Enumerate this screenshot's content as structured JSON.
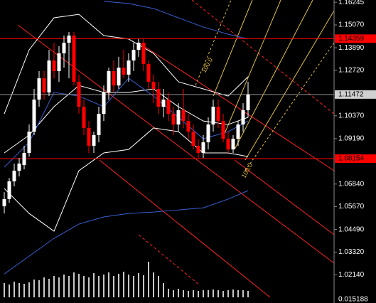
{
  "chart_data": {
    "type": "candlestick",
    "up_color": "#ffffff",
    "down_color": "#ff0000",
    "open": [
      1.0569,
      1.0606,
      1.0698,
      1.0753,
      1.0782,
      1.0845,
      1.0955,
      1.1121,
      1.1231,
      1.1158,
      1.1323,
      1.1268,
      1.136,
      1.1415,
      1.1452,
      1.1213,
      1.1084,
      1.0974,
      1.0882,
      1.0937,
      1.1047,
      1.1158,
      1.1268,
      1.1194,
      1.1286,
      1.125,
      1.1323,
      1.1378,
      1.1415,
      1.1305,
      1.1213,
      1.1176,
      1.1084,
      1.1121,
      1.1047,
      1.0992,
      1.1066,
      1.101,
      1.0955,
      1.0882,
      1.0845,
      1.09,
      1.0992,
      1.1084,
      1.101,
      1.0918,
      1.0863,
      1.0918,
      1.0992,
      1.1066
    ],
    "high": [
      1.0642,
      1.0716,
      1.079,
      1.0819,
      1.0882,
      1.0992,
      1.1176,
      1.1268,
      1.1268,
      1.1378,
      1.1415,
      1.1397,
      1.1452,
      1.147,
      1.147,
      1.125,
      1.1121,
      1.101,
      1.0955,
      1.1084,
      1.1194,
      1.1286,
      1.1323,
      1.1342,
      1.1378,
      1.136,
      1.1415,
      1.1434,
      1.1434,
      1.1323,
      1.125,
      1.1213,
      1.1176,
      1.1158,
      1.1084,
      1.1102,
      1.1176,
      1.1047,
      1.0992,
      1.0918,
      1.0937,
      1.1029,
      1.1121,
      1.1121,
      1.1047,
      1.0955,
      1.0937,
      1.101,
      1.1102,
      1.1213
    ],
    "low": [
      1.0532,
      1.0587,
      1.0672,
      1.0723,
      1.076,
      1.0826,
      1.0937,
      1.1084,
      1.1121,
      1.1139,
      1.1231,
      1.1213,
      1.1286,
      1.1231,
      1.1194,
      1.1047,
      1.0937,
      1.0845,
      1.0845,
      1.09,
      1.101,
      1.1121,
      1.1158,
      1.1176,
      1.1231,
      1.1213,
      1.1268,
      1.1342,
      1.1268,
      1.1176,
      1.1102,
      1.1047,
      1.1029,
      1.101,
      1.0937,
      1.0955,
      1.0974,
      1.0918,
      1.0863,
      1.0819,
      1.0819,
      1.0863,
      1.0955,
      1.0974,
      1.09,
      1.0845,
      1.0845,
      1.0882,
      1.0955,
      1.1029
    ],
    "close": [
      1.0606,
      1.0698,
      1.0753,
      1.079,
      1.0845,
      1.0955,
      1.1121,
      1.1231,
      1.1158,
      1.1323,
      1.1268,
      1.136,
      1.1415,
      1.1452,
      1.1213,
      1.1084,
      1.0974,
      1.0882,
      1.0937,
      1.1047,
      1.1158,
      1.1268,
      1.1194,
      1.1286,
      1.125,
      1.1323,
      1.1378,
      1.1415,
      1.1305,
      1.1213,
      1.1176,
      1.1084,
      1.1121,
      1.1047,
      1.0992,
      1.1066,
      1.101,
      1.0955,
      1.0882,
      1.0845,
      1.09,
      1.0992,
      1.1084,
      1.101,
      1.0918,
      1.0863,
      1.0918,
      1.0992,
      1.1066,
      1.1147
    ],
    "volumes": [
      20,
      18,
      22,
      20,
      19,
      21,
      25,
      24,
      28,
      26,
      30,
      28,
      32,
      30,
      35,
      33,
      30,
      28,
      34,
      30,
      32,
      35,
      30,
      33,
      36,
      32,
      30,
      34,
      31,
      50,
      35,
      30,
      20,
      12,
      10,
      12,
      10,
      9,
      10,
      9,
      10,
      10,
      11,
      10,
      9,
      10,
      11,
      10,
      10,
      9
    ],
    "volume_color": "#c8c8c8",
    "volume_tick": "0.015188",
    "overlays": [
      {
        "color": "#ffffff",
        "x": [
          0,
          5,
          10,
          15,
          20,
          25,
          30,
          35,
          40,
          45,
          49
        ],
        "values": [
          1.1047,
          1.1378,
          1.1544,
          1.1562,
          1.1452,
          1.1434,
          1.136,
          1.1213,
          1.1176,
          1.1139,
          1.1239
        ]
      },
      {
        "color": "#ffffff",
        "x": [
          0,
          5,
          10,
          15,
          20,
          25,
          30,
          35,
          40,
          45,
          49
        ],
        "values": [
          1.0661,
          1.0532,
          1.044,
          1.0753,
          1.0845,
          1.0863,
          1.0974,
          1.0955,
          1.0845,
          1.0845,
          1.0826
        ]
      },
      {
        "color": "#ffffff",
        "x": [
          0,
          5,
          10,
          15,
          20,
          25,
          30,
          35,
          40,
          45,
          49
        ],
        "values": [
          1.0845,
          1.0937,
          1.1084,
          1.1194,
          1.1158,
          1.1158,
          1.1176,
          1.1084,
          1.101,
          1.0992,
          1.1029
        ]
      },
      {
        "color": "#3a5fd0",
        "x": [
          0,
          5,
          10,
          15,
          20,
          25,
          30,
          35,
          40,
          45,
          49
        ],
        "values": [
          1.0771,
          1.09,
          1.1158,
          1.1139,
          1.1084,
          1.1231,
          1.1139,
          1.1029,
          1.0918,
          1.0955,
          1.101
        ]
      },
      {
        "color": "#3a5fd0",
        "x": [
          0,
          5,
          10,
          15,
          20,
          25,
          30,
          35,
          40,
          45,
          49
        ],
        "values": [
          1.0219,
          1.0311,
          1.0403,
          1.0477,
          1.0514,
          1.0532,
          1.0539,
          1.055,
          1.0561,
          1.0606,
          1.065
        ]
      },
      {
        "color": "#3a5fd0",
        "x": [
          20,
          25,
          30,
          35,
          40,
          45,
          49
        ],
        "values": [
          1.1629,
          1.1618,
          1.1592,
          1.1544,
          1.1496,
          1.1459,
          1.1434
        ]
      }
    ],
    "levels": [
      {
        "value": 1.14359,
        "color": "#ff0000",
        "label_bg": "#ff0000",
        "label_fg": "#000000"
      },
      {
        "value": 1.11472,
        "color": "#8c8c8c",
        "label_bg": "#d0d0d0",
        "label_fg": "#000000"
      },
      {
        "value": 1.08154,
        "color": "#ff0000",
        "label_bg": "#ff0000",
        "label_fg": "#000000"
      }
    ],
    "annotations": [
      {
        "text": "100.0",
        "color": "#e0c040"
      },
      {
        "text": "100.0",
        "color": "#e0c040"
      }
    ],
    "ylim": [
      1.0146,
      1.1636
    ],
    "yticks": [
      1.16245,
      {
        "value": 1.1507,
        "label": "1.15070"
      },
      {
        "value": 1.1389,
        "label": "1.13890"
      },
      {
        "value": 1.1272,
        "label": "1.12720"
      },
      {
        "value": 1.1037,
        "label": "1.10370"
      },
      {
        "value": 1.0919,
        "label": "1.09190"
      },
      {
        "value": 1.0684,
        "label": "1.06840"
      },
      {
        "value": 1.0567,
        "label": "1.05670"
      },
      {
        "value": 1.0449,
        "label": "1.04490"
      },
      {
        "value": 1.0332,
        "label": "1.03320"
      },
      {
        "value": 1.0214,
        "label": "1.02140"
      }
    ]
  }
}
